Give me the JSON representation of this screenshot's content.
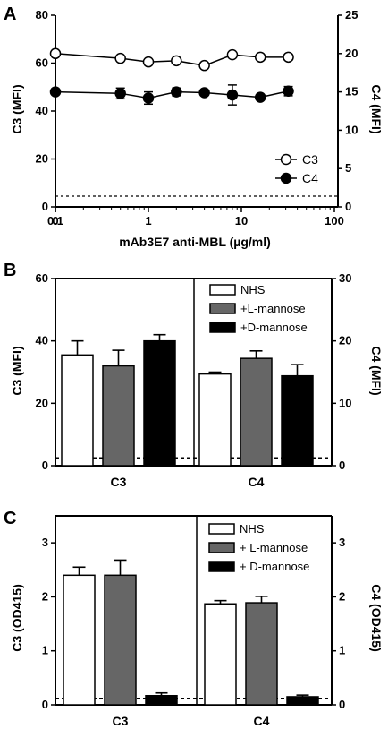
{
  "chart_data": [
    {
      "panel": "A",
      "type": "line",
      "xlabel": "mAb3E7 anti-MBL (µg/ml)",
      "xscale": "log with zero point",
      "x_tick_labels": [
        "0",
        "0.1",
        "1",
        "10",
        "100"
      ],
      "ylabel_left": "C3 (MFI)",
      "ylabel_right": "C4 (MFI)",
      "ylim_left": [
        0,
        80
      ],
      "ylim_right": [
        0,
        25
      ],
      "y_ticks_left": [
        "0",
        "20",
        "40",
        "60",
        "80"
      ],
      "y_ticks_right": [
        "0",
        "5",
        "10",
        "15",
        "20",
        "25"
      ],
      "legend": "bottom-right",
      "series": [
        {
          "name": "C3",
          "axis": "left",
          "marker": "open-circle",
          "x": [
            0,
            0.5,
            1,
            2,
            4,
            8,
            16,
            32
          ],
          "values": [
            64,
            62,
            60.5,
            61,
            59,
            63.5,
            62.5,
            62.5
          ],
          "errors": [
            0,
            0,
            0,
            0,
            0,
            0,
            0,
            0
          ]
        },
        {
          "name": "C4",
          "axis": "right",
          "marker": "filled-circle",
          "x": [
            0,
            0.5,
            1,
            2,
            4,
            8,
            16,
            32
          ],
          "values": [
            15.0,
            14.8,
            14.2,
            15.0,
            14.9,
            14.6,
            14.3,
            15.1
          ],
          "errors": [
            0,
            0.7,
            0.8,
            0.5,
            0.3,
            1.3,
            0.1,
            0.6
          ]
        }
      ],
      "baseline": {
        "style": "dashed",
        "value_left": 4.5
      }
    },
    {
      "panel": "B",
      "type": "bar",
      "categories": [
        "C3",
        "C4"
      ],
      "ylabel_left": "C3 (MFI)",
      "ylabel_right": "C4 (MFI)",
      "ylim_left": [
        0,
        60
      ],
      "ylim_right": [
        0,
        30
      ],
      "y_ticks_left": [
        "0",
        "20",
        "40",
        "60"
      ],
      "y_ticks_right": [
        "0",
        "10",
        "20",
        "30"
      ],
      "legend": "top-right",
      "series": [
        {
          "name": "NHS",
          "color": "#ffffff",
          "values": [
            35.5,
            14.7
          ],
          "errors": [
            4.5,
            0.3
          ]
        },
        {
          "name": "+L-mannose",
          "color": "#666666",
          "values": [
            32,
            17.2
          ],
          "errors": [
            5,
            1.2
          ]
        },
        {
          "name": "+D-mannose",
          "color": "#000000",
          "values": [
            40,
            14.4
          ],
          "errors": [
            2,
            1.8
          ]
        }
      ],
      "baseline": {
        "style": "dashed",
        "value_left": 2.5
      }
    },
    {
      "panel": "C",
      "type": "bar",
      "categories": [
        "C3",
        "C4"
      ],
      "ylabel_left": "C3 (OD415)",
      "ylabel_right": "C4 (OD415)",
      "ylim_left": [
        0,
        3.5
      ],
      "ylim_right": [
        0,
        3.5
      ],
      "y_ticks_left": [
        "0",
        "1",
        "2",
        "3"
      ],
      "y_ticks_right": [
        "0",
        "1",
        "2",
        "3"
      ],
      "legend": "top-right",
      "series": [
        {
          "name": "NHS",
          "color": "#ffffff",
          "values": [
            2.4,
            1.87
          ],
          "errors": [
            0.15,
            0.06
          ]
        },
        {
          "name": "+ L-mannose",
          "color": "#666666",
          "values": [
            2.4,
            1.89
          ],
          "errors": [
            0.28,
            0.12
          ]
        },
        {
          "name": "+ D-mannose",
          "color": "#000000",
          "values": [
            0.17,
            0.15
          ],
          "errors": [
            0.05,
            0.03
          ]
        }
      ],
      "baseline": {
        "style": "dashed",
        "value_left": 0.12
      }
    }
  ]
}
